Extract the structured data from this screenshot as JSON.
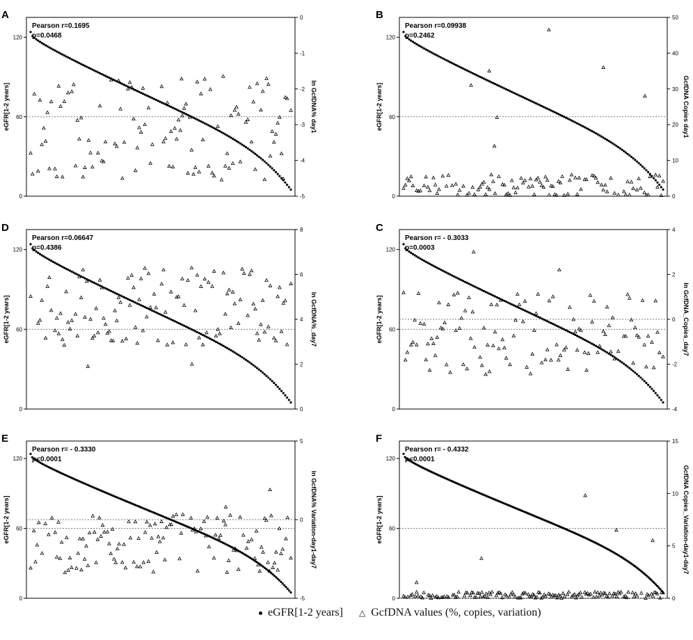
{
  "legend": {
    "series_a": "eGFR[1-2 years]",
    "series_b": "GcfDNA values (%, copies, variation)"
  },
  "colors": {
    "ink": "#000000",
    "ref_line": "#7a7a7a"
  },
  "chart_data": [
    {
      "panel": "A",
      "type": "scatter",
      "stat_r": "Pearson r=0.1695",
      "stat_p": "p=0.0468",
      "ylabel_left": "eGFR[1-2 years]",
      "ylim_left": [
        0,
        135
      ],
      "yticks_left": [
        0,
        60,
        120
      ],
      "ylabel_right": "ln GcfDNA% day1",
      "ylim_right": [
        -5,
        0
      ],
      "yticks_right": [
        -5,
        -4,
        -3,
        -2,
        -1,
        0
      ],
      "ref_lines": [
        {
          "axis": "left",
          "value": 60
        }
      ],
      "egfr_start": 124,
      "egfr_end": 5,
      "gcfdna_range": [
        -4.6,
        -1.7
      ],
      "gcfdna_peaks": [
        {
          "index": 0.58,
          "value": -1.72
        },
        {
          "index": 0.74,
          "value": -1.65
        }
      ],
      "n": 140,
      "seed": 11
    },
    {
      "panel": "B",
      "type": "scatter",
      "stat_r": "Pearson r=0.09938",
      "stat_p": "p=0.2462",
      "ylabel_left": "eGFR[1-2 years]",
      "ylim_left": [
        0,
        135
      ],
      "yticks_left": [
        0,
        60,
        120
      ],
      "ylabel_right": "GcfDNA Copies day1",
      "ylim_right": [
        0,
        50
      ],
      "yticks_right": [
        0,
        10,
        20,
        30,
        40,
        50
      ],
      "ref_lines": [
        {
          "axis": "left",
          "value": 60
        }
      ],
      "egfr_start": 124,
      "egfr_end": 5,
      "gcfdna_range": [
        0,
        6
      ],
      "gcfdna_peaks": [
        {
          "index": 0.56,
          "value": 46.5
        },
        {
          "index": 0.77,
          "value": 36
        },
        {
          "index": 0.33,
          "value": 35
        },
        {
          "index": 0.26,
          "value": 31
        },
        {
          "index": 0.93,
          "value": 28
        },
        {
          "index": 0.36,
          "value": 22
        },
        {
          "index": 0.35,
          "value": 14
        }
      ],
      "n": 140,
      "seed": 23
    },
    {
      "panel": "D",
      "type": "scatter",
      "stat_r": "Pearson r=0.06647",
      "stat_p": "p=0.4386",
      "ylabel_left": "eGFR[1-2 years]",
      "ylim_left": [
        0,
        135
      ],
      "yticks_left": [
        0,
        60,
        120
      ],
      "ylabel_right": "ln GcfDNA%_day7",
      "ylim_right": [
        0,
        8
      ],
      "yticks_right": [
        0,
        2,
        4,
        6,
        8
      ],
      "ref_lines": [
        {
          "axis": "left",
          "value": 60
        }
      ],
      "egfr_start": 124,
      "egfr_end": 5,
      "gcfdna_range": [
        2.8,
        6.3
      ],
      "gcfdna_peaks": [
        {
          "index": 0.22,
          "value": 1.9
        },
        {
          "index": 0.62,
          "value": 2.0
        }
      ],
      "n": 140,
      "seed": 37
    },
    {
      "panel": "C",
      "type": "scatter",
      "stat_r": "Pearson r= - 0.3033",
      "stat_p": "p=0.0003",
      "ylabel_left": "eGFR[1-2 years]",
      "ylim_left": [
        0,
        135
      ],
      "yticks_left": [
        0,
        60,
        120
      ],
      "ylabel_right": "ln GcfDNA_Copies_day7",
      "ylim_right": [
        -4,
        4
      ],
      "yticks_right": [
        -4,
        -2,
        0,
        2,
        4
      ],
      "ref_lines": [
        {
          "axis": "left",
          "value": 60
        },
        {
          "axis": "right",
          "value": 0
        }
      ],
      "egfr_start": 124,
      "egfr_end": 5,
      "gcfdna_range": [
        -2.5,
        1.2
      ],
      "gcfdna_peaks": [
        {
          "index": 0.27,
          "value": 3.0
        },
        {
          "index": 0.6,
          "value": 2.2
        }
      ],
      "n": 140,
      "seed": 41
    },
    {
      "panel": "E",
      "type": "scatter",
      "stat_r": "Pearson r= - 0.3330",
      "stat_p": "p<0.0001",
      "ylabel_left": "eGFR[1-2 years]",
      "ylim_left": [
        0,
        135
      ],
      "yticks_left": [
        0,
        60,
        120
      ],
      "ylabel_right": "ln GcfDNA% Variation-day1-day7",
      "ylim_right": [
        -5,
        5
      ],
      "yticks_right": [
        -5,
        0,
        5
      ],
      "ref_lines": [
        {
          "axis": "left",
          "value": 60
        },
        {
          "axis": "right",
          "value": 0
        }
      ],
      "egfr_start": 124,
      "egfr_end": 5,
      "gcfdna_range": [
        -3.4,
        0.4
      ],
      "gcfdna_peaks": [
        {
          "index": 0.92,
          "value": 1.9
        },
        {
          "index": 0.75,
          "value": 0.8
        }
      ],
      "n": 160,
      "seed": 53
    },
    {
      "panel": "F",
      "type": "scatter",
      "stat_r": "Pearson r= - 0.4332",
      "stat_p": "p<0.0001",
      "ylabel_left": "eGFR[1-2 years]",
      "ylim_left": [
        0,
        135
      ],
      "yticks_left": [
        0,
        60,
        120
      ],
      "ylabel_right": "GcfDNA Copies_Variation-day1-day7",
      "ylim_right": [
        0,
        15
      ],
      "yticks_right": [
        0,
        5,
        10,
        15
      ],
      "ref_lines": [
        {
          "axis": "left",
          "value": 60
        },
        {
          "axis": "right",
          "value": 0
        }
      ],
      "egfr_start": 124,
      "egfr_end": 5,
      "gcfdna_range": [
        0,
        0.6
      ],
      "gcfdna_peaks": [
        {
          "index": 0.7,
          "value": 9.8
        },
        {
          "index": 0.96,
          "value": 5.5
        },
        {
          "index": 0.82,
          "value": 6.5
        },
        {
          "index": 0.3,
          "value": 3.8
        },
        {
          "index": 0.05,
          "value": 1.5
        }
      ],
      "n": 180,
      "seed": 67
    }
  ]
}
